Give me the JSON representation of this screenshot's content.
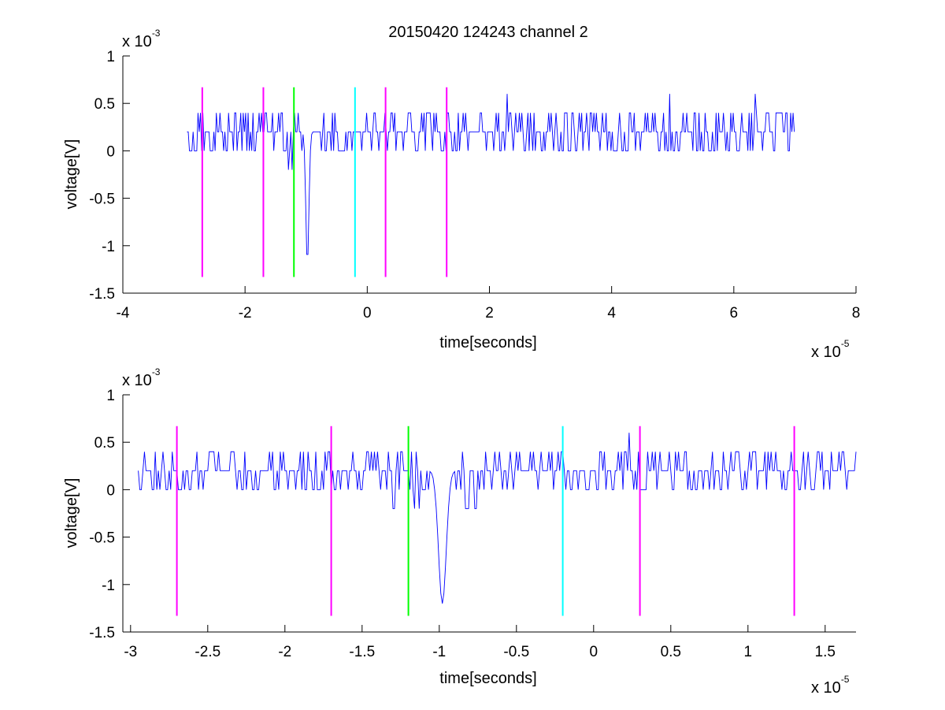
{
  "figure_title": "20150420 124243 channel 2",
  "colors": {
    "signal": "#0000ff",
    "magenta": "#ff00ff",
    "green": "#00ff00",
    "cyan": "#00ffff",
    "axes": "#000000",
    "background": "#ffffff"
  },
  "chart_data": [
    {
      "type": "line",
      "title": "20150420 124243 channel 2",
      "xlabel": "time[seconds]",
      "ylabel": "voltage[V]",
      "x_multiplier_label": "x 10",
      "x_multiplier_exponent": "-5",
      "y_multiplier_label": "x 10",
      "y_multiplier_exponent": "-3",
      "xlim": [
        -4,
        8
      ],
      "ylim": [
        -1.5,
        1
      ],
      "xticks": [
        -4,
        -2,
        0,
        2,
        4,
        6,
        8
      ],
      "xtick_labels": [
        "-4",
        "-2",
        "0",
        "2",
        "4",
        "6",
        "8"
      ],
      "yticks": [
        -1.5,
        -1,
        -0.5,
        0,
        0.5,
        1
      ],
      "ytick_labels": [
        "-1.5",
        "-1",
        "-0.5",
        "0",
        "0.5",
        "1"
      ],
      "grid": false,
      "legend": "none",
      "signal_series": {
        "color": "#0000ff",
        "x_range": [
          -2.95,
          7.0
        ],
        "sample_spacing": 0.02,
        "baseline": 0.2,
        "quantization_step": 0.2,
        "typical_range": [
          0,
          0.4
        ],
        "negative_spike": {
          "x": -0.98,
          "min": -1.2
        },
        "positive_spikes": [
          {
            "x": 2.3,
            "y": 0.6
          },
          {
            "x": 4.95,
            "y": 0.6
          },
          {
            "x": 6.35,
            "y": 0.6
          }
        ]
      },
      "markers": [
        {
          "x": -2.7,
          "y_range": [
            -1.33,
            0.67
          ],
          "color": "#ff00ff"
        },
        {
          "x": -1.7,
          "y_range": [
            -1.33,
            0.67
          ],
          "color": "#ff00ff"
        },
        {
          "x": -1.2,
          "y_range": [
            -1.33,
            0.67
          ],
          "color": "#00ff00"
        },
        {
          "x": -0.2,
          "y_range": [
            -1.33,
            0.67
          ],
          "color": "#00ffff"
        },
        {
          "x": 0.3,
          "y_range": [
            -1.33,
            0.67
          ],
          "color": "#ff00ff"
        },
        {
          "x": 1.3,
          "y_range": [
            -1.33,
            0.67
          ],
          "color": "#ff00ff"
        }
      ]
    },
    {
      "type": "line",
      "title": "",
      "xlabel": "time[seconds]",
      "ylabel": "voltage[V]",
      "x_multiplier_label": "x 10",
      "x_multiplier_exponent": "-5",
      "y_multiplier_label": "x 10",
      "y_multiplier_exponent": "-3",
      "xlim": [
        -3.05,
        1.7
      ],
      "ylim": [
        -1.5,
        1
      ],
      "xticks": [
        -3,
        -2.5,
        -2,
        -1.5,
        -1,
        -0.5,
        0,
        0.5,
        1,
        1.5
      ],
      "xtick_labels": [
        "-3",
        "-2.5",
        "-2",
        "-1.5",
        "-1",
        "-0.5",
        "0",
        "0.5",
        "1",
        "1.5"
      ],
      "yticks": [
        -1.5,
        -1,
        -0.5,
        0,
        0.5,
        1
      ],
      "ytick_labels": [
        "-1.5",
        "-1",
        "-0.5",
        "0",
        "0.5",
        "1"
      ],
      "grid": false,
      "legend": "none",
      "signal_series": {
        "color": "#0000ff",
        "x_range": [
          -2.95,
          1.7
        ],
        "sample_spacing": 0.01,
        "baseline": 0.2,
        "quantization_step": 0.2,
        "typical_range": [
          0,
          0.4
        ],
        "negative_spike": {
          "x": -0.98,
          "min": -1.2
        },
        "positive_spikes": [
          {
            "x": 0.23,
            "y": 0.6
          }
        ]
      },
      "markers": [
        {
          "x": -2.7,
          "y_range": [
            -1.33,
            0.67
          ],
          "color": "#ff00ff"
        },
        {
          "x": -1.7,
          "y_range": [
            -1.33,
            0.67
          ],
          "color": "#ff00ff"
        },
        {
          "x": -1.2,
          "y_range": [
            -1.33,
            0.67
          ],
          "color": "#00ff00"
        },
        {
          "x": -0.2,
          "y_range": [
            -1.33,
            0.67
          ],
          "color": "#00ffff"
        },
        {
          "x": 0.3,
          "y_range": [
            -1.33,
            0.67
          ],
          "color": "#ff00ff"
        },
        {
          "x": 1.3,
          "y_range": [
            -1.33,
            0.67
          ],
          "color": "#ff00ff"
        }
      ]
    }
  ]
}
